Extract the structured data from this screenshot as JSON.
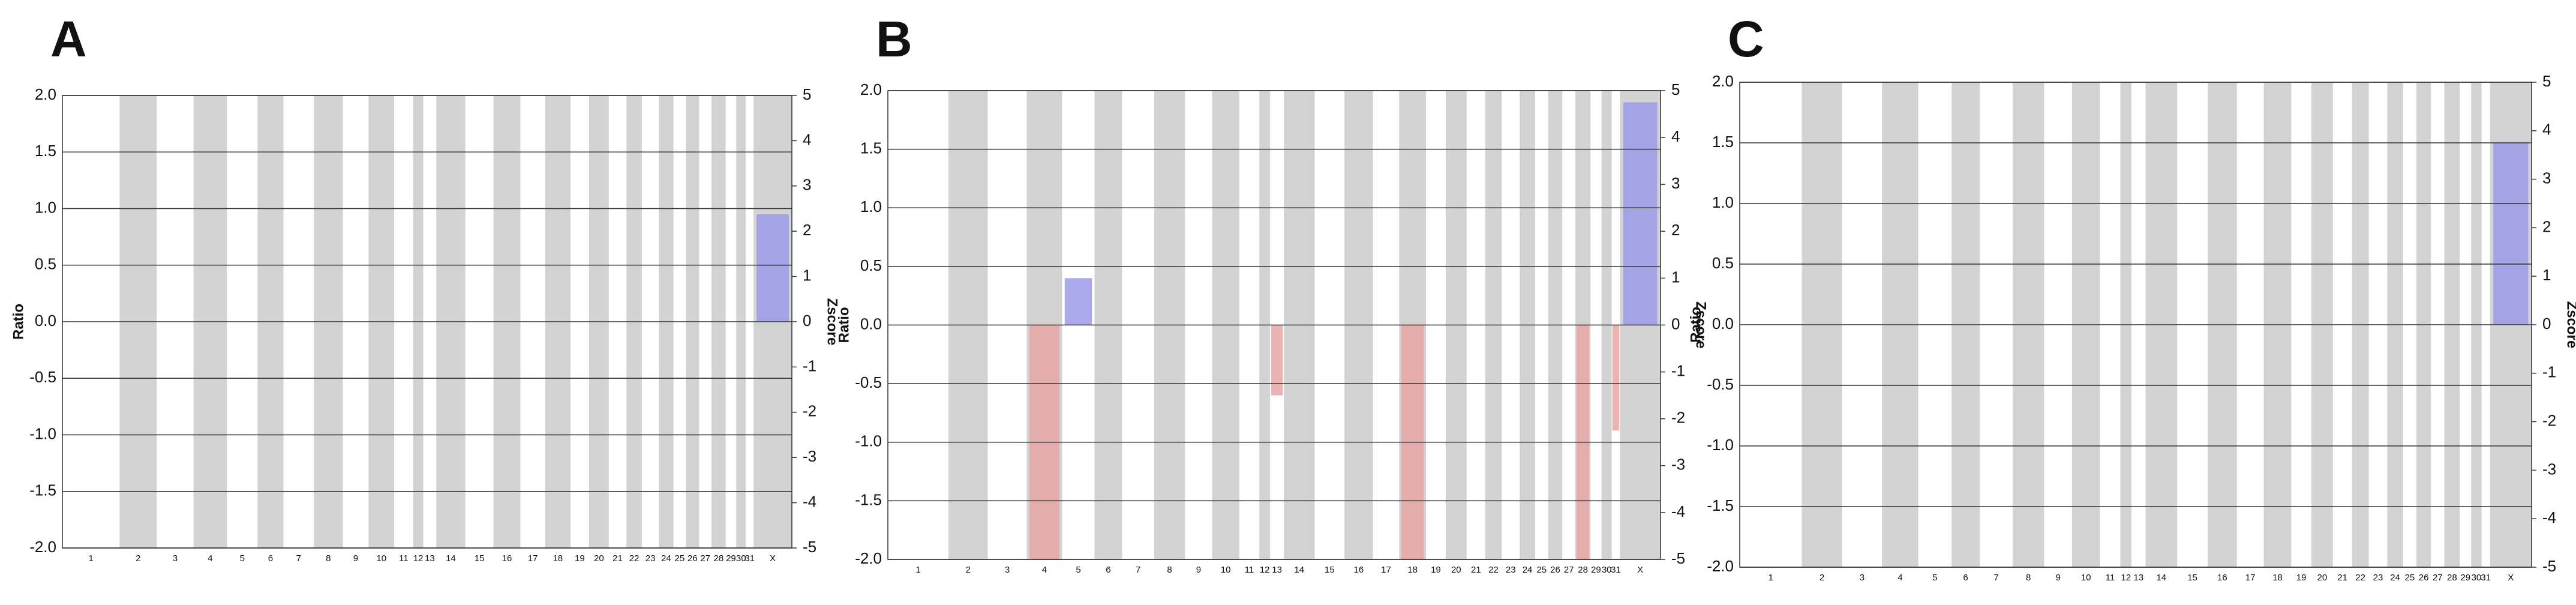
{
  "chart_data": [
    {
      "type": "bar",
      "title": "A",
      "ylabel": "Ratio",
      "y2label": "Zscore",
      "categories": [
        "1",
        "2",
        "3",
        "4",
        "5",
        "6",
        "7",
        "8",
        "9",
        "10",
        "11",
        "12",
        "13",
        "14",
        "15",
        "16",
        "17",
        "18",
        "19",
        "20",
        "21",
        "22",
        "23",
        "24",
        "25",
        "26",
        "27",
        "28",
        "29",
        "30",
        "31",
        "X"
      ],
      "values": [
        0,
        0,
        0,
        0,
        0,
        0,
        0,
        0,
        0,
        0,
        0,
        0,
        0,
        0,
        0,
        0,
        0,
        0,
        0,
        0,
        0,
        0,
        0,
        0,
        0,
        0,
        0,
        0,
        0,
        0,
        0,
        0.95
      ],
      "gain_color": "#9a9ae8",
      "loss_color": "#e8a4a4",
      "band_color": "#d3d3d3",
      "ylim": [
        -2,
        2
      ],
      "yticks": [
        {
          "value": -2,
          "label": "-2.0"
        },
        -1.5,
        {
          "value": -1,
          "label": "-1.0"
        },
        -0.5,
        {
          "value": 0,
          "label": "0.0"
        },
        0.5,
        {
          "value": 1,
          "label": "1.0"
        },
        1.5,
        {
          "value": 2,
          "label": "2.0"
        }
      ],
      "y2lim": [
        -5,
        5
      ],
      "y2ticks": [
        -5,
        -4,
        -3,
        -2,
        -1,
        0,
        1,
        2,
        3,
        4,
        5
      ],
      "grid": true
    },
    {
      "type": "bar",
      "title": "B",
      "ylabel": "Ratio",
      "y2label": "Zscore",
      "categories": [
        "1",
        "2",
        "3",
        "4",
        "5",
        "6",
        "7",
        "8",
        "9",
        "10",
        "11",
        "12",
        "13",
        "14",
        "15",
        "16",
        "17",
        "18",
        "19",
        "20",
        "21",
        "22",
        "23",
        "24",
        "25",
        "26",
        "27",
        "28",
        "29",
        "30",
        "31",
        "X"
      ],
      "values": [
        0,
        0,
        0,
        -2,
        0.4,
        0,
        0,
        0,
        0,
        0,
        0,
        0,
        -0.6,
        0,
        0,
        0,
        0,
        -2,
        0,
        0,
        0,
        0,
        0,
        0,
        0,
        0,
        0,
        -2,
        0,
        0,
        -0.9,
        1.9
      ],
      "gain_color": "#9a9ae8",
      "loss_color": "#e8a4a4",
      "band_color": "#d3d3d3",
      "ylim": [
        -2,
        2
      ],
      "yticks": [
        {
          "value": -2,
          "label": "-2.0"
        },
        -1.5,
        {
          "value": -1,
          "label": "-1.0"
        },
        -0.5,
        {
          "value": 0,
          "label": "0.0"
        },
        0.5,
        {
          "value": 1,
          "label": "1.0"
        },
        1.5,
        {
          "value": 2,
          "label": "2.0"
        }
      ],
      "y2lim": [
        -5,
        5
      ],
      "y2ticks": [
        -5,
        -4,
        -3,
        -2,
        -1,
        0,
        1,
        2,
        3,
        4,
        5
      ],
      "grid": true
    },
    {
      "type": "bar",
      "title": "C",
      "ylabel": "Ratio",
      "y2label": "Zscore",
      "categories": [
        "1",
        "2",
        "3",
        "4",
        "5",
        "6",
        "7",
        "8",
        "9",
        "10",
        "11",
        "12",
        "13",
        "14",
        "15",
        "16",
        "17",
        "18",
        "19",
        "20",
        "21",
        "22",
        "23",
        "24",
        "25",
        "26",
        "27",
        "28",
        "29",
        "30",
        "31",
        "X"
      ],
      "values": [
        0,
        0,
        0,
        0,
        0,
        0,
        0,
        0,
        0,
        0,
        0,
        0,
        0,
        0,
        0,
        0,
        0,
        0,
        0,
        0,
        0,
        0,
        0,
        0,
        0,
        0,
        0,
        0,
        0,
        0,
        0,
        1.5
      ],
      "gain_color": "#9a9ae8",
      "loss_color": "#e8a4a4",
      "band_color": "#d3d3d3",
      "ylim": [
        -2,
        2
      ],
      "yticks": [
        {
          "value": -2,
          "label": "-2.0"
        },
        -1.5,
        {
          "value": -1,
          "label": "-1.0"
        },
        -0.5,
        {
          "value": 0,
          "label": "0.0"
        },
        0.5,
        {
          "value": 1,
          "label": "1.0"
        },
        1.5,
        {
          "value": 2,
          "label": "2.0"
        }
      ],
      "y2lim": [
        -5,
        5
      ],
      "y2ticks": [
        -5,
        -4,
        -3,
        -2,
        -1,
        0,
        1,
        2,
        3,
        4,
        5
      ],
      "grid": true
    }
  ]
}
